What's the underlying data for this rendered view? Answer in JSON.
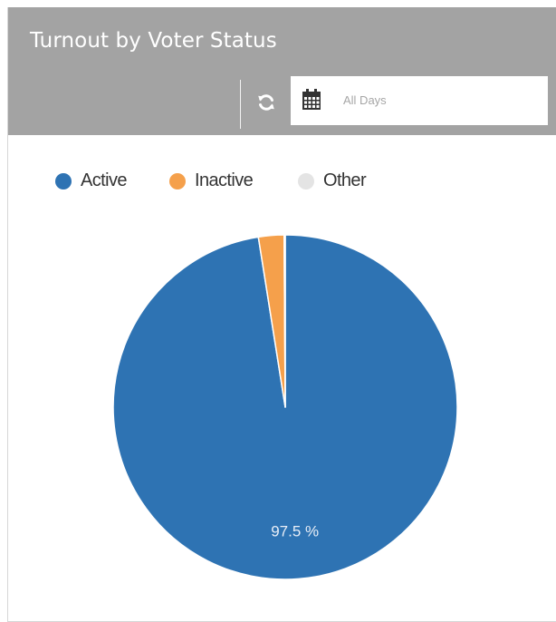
{
  "widget": {
    "title": "Turnout by Voter Status",
    "date_filter": {
      "value": "All Days"
    },
    "icons": {
      "refresh": "refresh-icon",
      "calendar": "calendar-icon"
    }
  },
  "colors": {
    "header_bg": "#a3a3a3",
    "active": "#2e73b3",
    "inactive": "#f5a04b",
    "other": "#e4e4e4"
  },
  "chart_data": {
    "type": "pie",
    "title": "Turnout by Voter Status",
    "legend_position": "top-left",
    "series": [
      {
        "name": "Active",
        "value": 97.5,
        "color": "#2e73b3",
        "label": "97.5 %"
      },
      {
        "name": "Inactive",
        "value": 2.4,
        "color": "#f5a04b",
        "label": ""
      },
      {
        "name": "Other",
        "value": 0.1,
        "color": "#e4e4e4",
        "label": ""
      }
    ]
  }
}
